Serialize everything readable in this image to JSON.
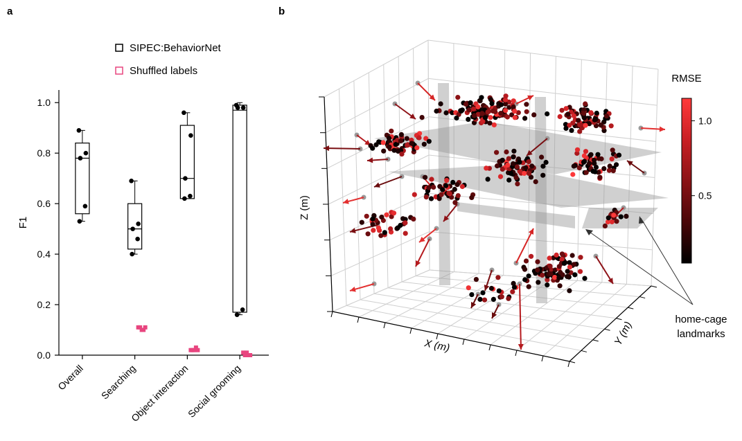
{
  "panels": {
    "a": "a",
    "b": "b"
  },
  "chart_data": [
    {
      "type": "box",
      "panel": "a",
      "ylabel": "F1",
      "ylim": [
        0,
        1.05
      ],
      "yticks": [
        "0.0",
        "0.2",
        "0.4",
        "0.6",
        "0.8",
        "1.0"
      ],
      "yticks_values": [
        0,
        0.2,
        0.4,
        0.6,
        0.8,
        1.0
      ],
      "categories": [
        "Overall",
        "Searching",
        "Object interaction",
        "Social grooming"
      ],
      "legend": [
        {
          "label": "SIPEC:BehaviorNet",
          "color": "#000000"
        },
        {
          "label": "Shuffled labels",
          "color": "#e8457f"
        }
      ],
      "series": [
        {
          "name": "SIPEC:BehaviorNet",
          "boxes": [
            {
              "min": 0.53,
              "q1": 0.56,
              "median": 0.78,
              "q3": 0.84,
              "max": 0.89,
              "points": [
                0.89,
                0.8,
                0.78,
                0.59,
                0.53
              ]
            },
            {
              "min": 0.4,
              "q1": 0.42,
              "median": 0.5,
              "q3": 0.6,
              "max": 0.69,
              "points": [
                0.69,
                0.52,
                0.5,
                0.46,
                0.4
              ]
            },
            {
              "min": 0.62,
              "q1": 0.62,
              "median": 0.7,
              "q3": 0.91,
              "max": 0.96,
              "points": [
                0.96,
                0.87,
                0.7,
                0.63,
                0.62
              ]
            },
            {
              "min": 0.16,
              "q1": 0.17,
              "median": 0.97,
              "q3": 0.99,
              "max": 1.0,
              "points": [
                0.99,
                0.98,
                0.98,
                0.18,
                0.16
              ]
            }
          ]
        },
        {
          "name": "Shuffled labels",
          "values": [
            [],
            [
              0.11,
              0.11,
              0.1,
              0.1,
              0.11
            ],
            [
              0.02,
              0.02,
              0.02,
              0.03,
              0.02
            ],
            [
              0.01,
              0.0,
              0.01,
              0.0,
              0.0
            ]
          ]
        }
      ]
    },
    {
      "type": "scatter3d",
      "panel": "b",
      "xlabel": "X (m)",
      "ylabel": "Y (m)",
      "zlabel": "Z (m)",
      "colorbar": {
        "label": "RMSE",
        "ticks": [
          "1.0",
          "0.5"
        ],
        "tick_values": [
          1.0,
          0.5
        ],
        "range": [
          0.05,
          1.15
        ],
        "colors": [
          "#000000",
          "#4a0608",
          "#8b1316",
          "#c91f24",
          "#ff3a3a"
        ]
      },
      "annotation": "home-cage\nlandmarks",
      "annotation_lines": [
        "home-cage",
        "landmarks"
      ],
      "point_count": 600
    }
  ]
}
